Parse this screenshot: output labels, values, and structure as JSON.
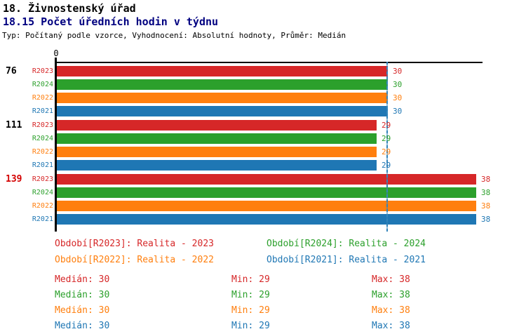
{
  "header": {
    "title": "18. Živnostenský úřad",
    "subtitle": "18.15 Počet úředních hodin v týdnu",
    "meta": "Typ: Počítaný podle vzorce, Vyhodnocení: Absolutní hodnoty, Průměr: Medián"
  },
  "colors": {
    "red": "#d62728",
    "green": "#2ca02c",
    "orange": "#ff7f0e",
    "blue": "#1f77b4",
    "median_line": "#3385bb",
    "axis": "#000000",
    "alert_label": "#d40000",
    "subtitle_text": "#000080"
  },
  "chart_data": {
    "type": "bar",
    "orientation": "horizontal",
    "title": "18.15 Počet úředních hodin v týdnu",
    "xlim": [
      0,
      38.6
    ],
    "origin_tick_label": "0",
    "grid": false,
    "median_reference_value": 30,
    "series_order": [
      "R2023",
      "R2024",
      "R2022",
      "R2021"
    ],
    "series_colors": {
      "R2023": "#d62728",
      "R2024": "#2ca02c",
      "R2022": "#ff7f0e",
      "R2021": "#1f77b4"
    },
    "groups": [
      {
        "label": "76",
        "label_color": "#000000",
        "values": {
          "R2023": 30,
          "R2024": 30,
          "R2022": 30,
          "R2021": 30
        }
      },
      {
        "label": "111",
        "label_color": "#000000",
        "values": {
          "R2023": 29,
          "R2024": 29,
          "R2022": 29,
          "R2021": 29
        }
      },
      {
        "label": "139",
        "label_color": "#d40000",
        "values": {
          "R2023": 38,
          "R2024": 38,
          "R2022": 38,
          "R2021": 38
        }
      }
    ]
  },
  "legend": {
    "items": [
      {
        "label": "Období[R2023]: Realita - 2023",
        "color": "#d62728"
      },
      {
        "label": "Období[R2024]: Realita - 2024",
        "color": "#2ca02c"
      },
      {
        "label": "Období[R2022]: Realita - 2022",
        "color": "#ff7f0e"
      },
      {
        "label": "Období[R2021]: Realita - 2021",
        "color": "#1f77b4"
      }
    ]
  },
  "stats": {
    "rows": [
      {
        "series": "R2023",
        "color": "#d62728",
        "median": "Medián: 30",
        "min": "Min: 29",
        "max": "Max: 38"
      },
      {
        "series": "R2024",
        "color": "#2ca02c",
        "median": "Medián: 30",
        "min": "Min: 29",
        "max": "Max: 38"
      },
      {
        "series": "R2022",
        "color": "#ff7f0e",
        "median": "Medián: 30",
        "min": "Min: 29",
        "max": "Max: 38"
      },
      {
        "series": "R2021",
        "color": "#1f77b4",
        "median": "Medián: 30",
        "min": "Min: 29",
        "max": "Max: 38"
      }
    ]
  }
}
